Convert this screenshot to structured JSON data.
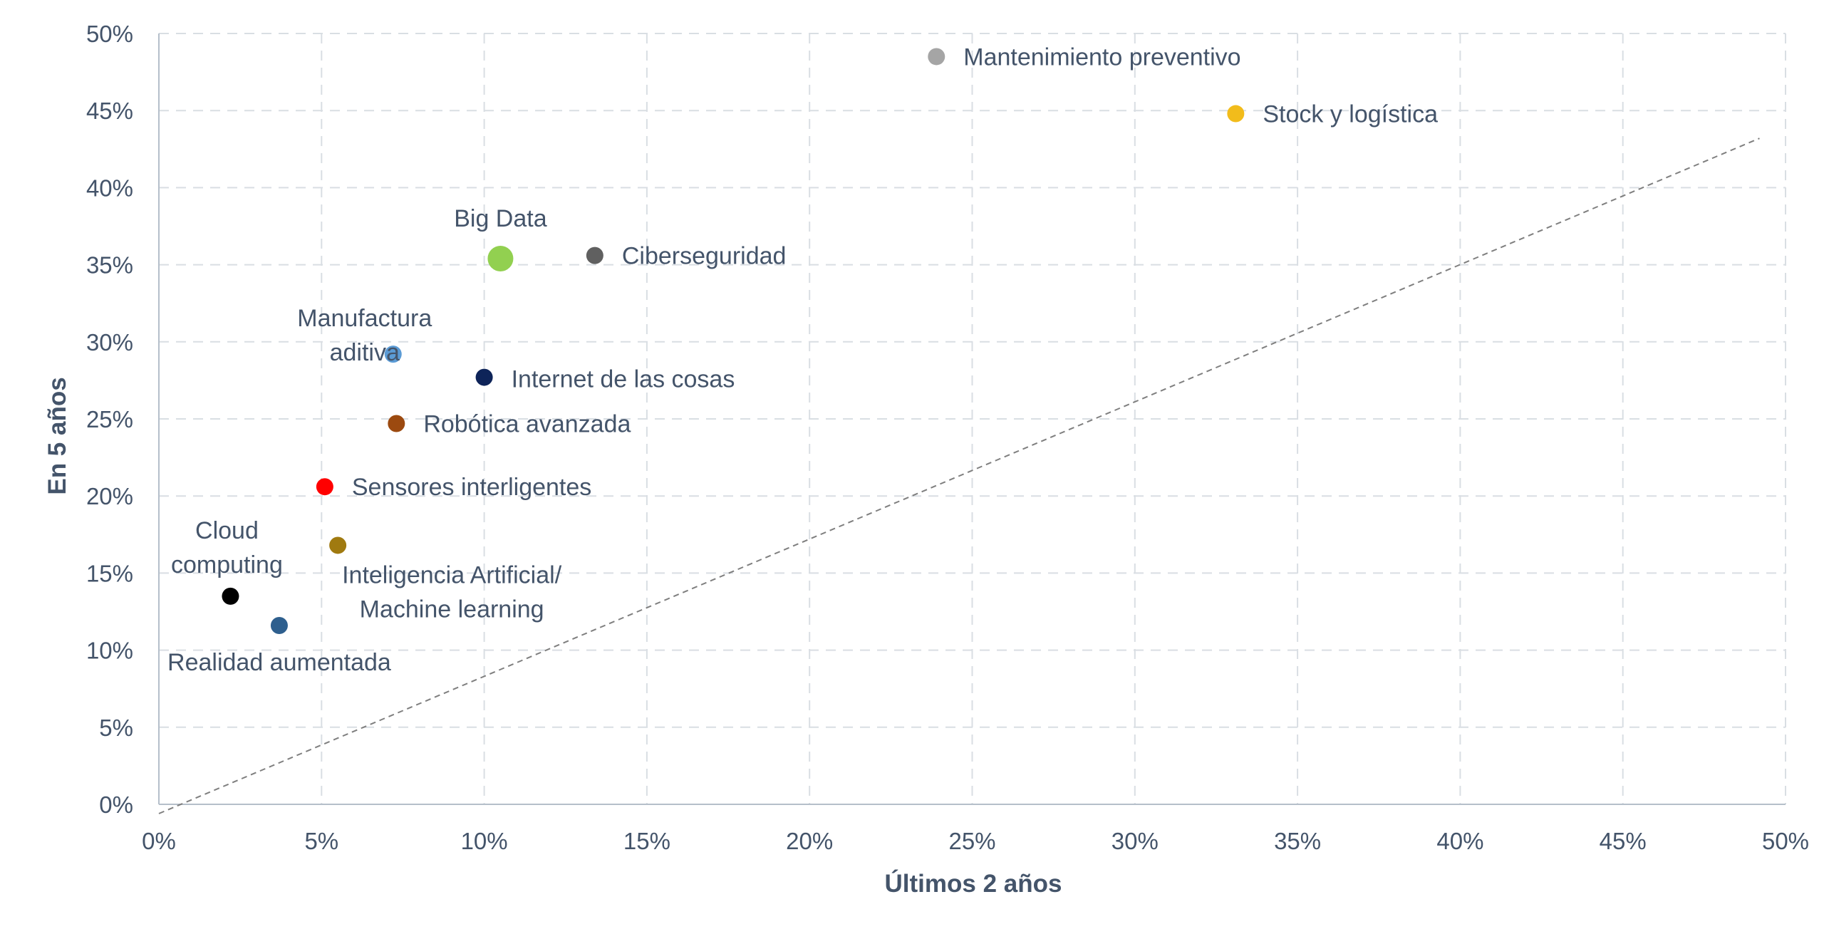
{
  "chart_data": {
    "type": "scatter",
    "xlabel": "Últimos 2 años",
    "ylabel": "En 5 años",
    "xlim": [
      0,
      50
    ],
    "ylim": [
      0,
      50
    ],
    "x_ticks": [
      "0%",
      "5%",
      "10%",
      "15%",
      "20%",
      "25%",
      "30%",
      "35%",
      "40%",
      "45%",
      "50%"
    ],
    "y_ticks": [
      "0%",
      "5%",
      "10%",
      "15%",
      "20%",
      "25%",
      "30%",
      "35%",
      "40%",
      "45%",
      "50%"
    ],
    "grid": true,
    "reference_line": {
      "from": [
        0,
        -0.6
      ],
      "to": [
        49.2,
        43.2
      ]
    },
    "points": [
      {
        "label": [
          "Mantenimiento preventivo"
        ],
        "x": 23.9,
        "y": 48.5,
        "color": "#a5a5a5",
        "size": "normal",
        "label_pos": "right"
      },
      {
        "label": [
          "Stock y logística"
        ],
        "x": 33.1,
        "y": 44.8,
        "color": "#f2bc1b",
        "size": "normal",
        "label_pos": "right"
      },
      {
        "label": [
          "Big Data"
        ],
        "x": 10.5,
        "y": 35.4,
        "color": "#92d050",
        "size": "large",
        "label_pos": "top"
      },
      {
        "label": [
          "Ciberseguridad"
        ],
        "x": 13.4,
        "y": 35.6,
        "color": "#606060",
        "size": "normal",
        "label_pos": "right"
      },
      {
        "label": [
          "Manufactura",
          "aditiva"
        ],
        "x": 7.2,
        "y": 29.2,
        "color": "#5b9bd5",
        "size": "normal",
        "label_pos": "left-top"
      },
      {
        "label": [
          "Internet de las cosas"
        ],
        "x": 10.0,
        "y": 27.7,
        "color": "#0e2459",
        "size": "normal",
        "label_pos": "right-below"
      },
      {
        "label": [
          "Robótica avanzada"
        ],
        "x": 7.3,
        "y": 24.7,
        "color": "#9c4a10",
        "size": "normal",
        "label_pos": "right"
      },
      {
        "label": [
          "Sensores interligentes"
        ],
        "x": 5.1,
        "y": 20.6,
        "color": "#ff0000",
        "size": "normal",
        "label_pos": "right"
      },
      {
        "label": [
          "Inteligencia Artificial/",
          "Machine learning"
        ],
        "x": 5.5,
        "y": 16.8,
        "color": "#a07a10",
        "size": "normal",
        "label_pos": "below-right"
      },
      {
        "label": [
          "Cloud",
          "computing"
        ],
        "x": 2.2,
        "y": 13.5,
        "color": "#000000",
        "size": "normal",
        "label_pos": "above"
      },
      {
        "label": [
          "Realidad aumentada"
        ],
        "x": 3.7,
        "y": 11.6,
        "color": "#2e5f8e",
        "size": "normal",
        "label_pos": "below"
      }
    ]
  }
}
